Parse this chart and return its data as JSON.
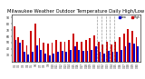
{
  "title": "Milwaukee Weather Outdoor Temperature Daily High/Low",
  "title_fontsize": 3.8,
  "bar_width": 0.4,
  "ylim": [
    20,
    95
  ],
  "yticks": [
    30,
    40,
    50,
    60,
    70,
    80,
    90
  ],
  "background_color": "#ffffff",
  "high_color": "#cc0000",
  "low_color": "#0000cc",
  "dates": [
    "3/1",
    "3/2",
    "3/3",
    "3/4",
    "3/5",
    "3/6",
    "3/7",
    "3/8",
    "3/9",
    "3/10",
    "3/11",
    "3/12",
    "3/13",
    "3/14",
    "3/15",
    "3/16",
    "3/17",
    "3/18",
    "3/19",
    "3/20",
    "3/21",
    "3/22",
    "3/23",
    "3/24",
    "3/25",
    "3/26",
    "3/27",
    "3/28",
    "3/29",
    "3/30"
  ],
  "highs": [
    76,
    58,
    55,
    45,
    69,
    80,
    57,
    50,
    48,
    50,
    54,
    52,
    51,
    54,
    65,
    52,
    52,
    55,
    57,
    62,
    52,
    47,
    52,
    47,
    51,
    58,
    65,
    72,
    68,
    58
  ],
  "lows": [
    55,
    50,
    35,
    32,
    35,
    45,
    38,
    33,
    30,
    33,
    36,
    37,
    36,
    38,
    44,
    38,
    37,
    37,
    39,
    44,
    36,
    33,
    37,
    35,
    35,
    38,
    44,
    50,
    48,
    44
  ],
  "dashed_lines": [
    19.5,
    20.5,
    21.5,
    22.5,
    23.5
  ],
  "legend_high_label": "High",
  "legend_low_label": "Low"
}
